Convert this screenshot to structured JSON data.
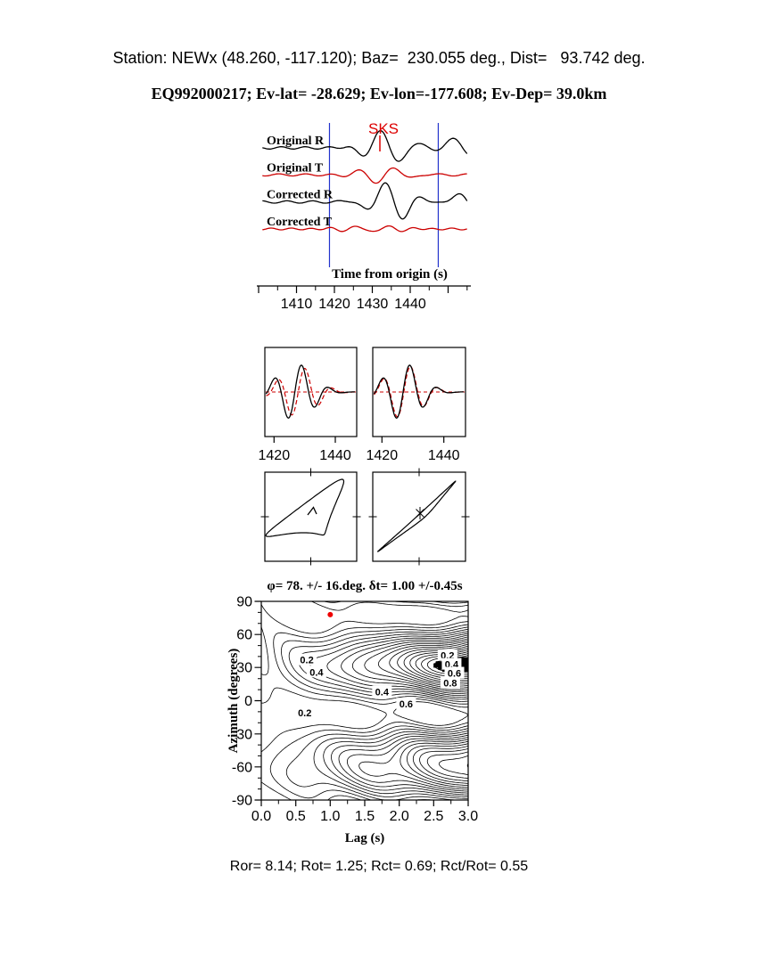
{
  "page": {
    "title_line1": "Station: NEWx (48.260, -117.120); Baz=  230.055 deg., Dist=   93.742 deg.",
    "title_line2": "EQ992000217; Ev-lat= -28.629; Ev-lon=-177.608; Ev-Dep= 39.0km",
    "footer": "Ror= 8.14; Rot= 1.25; Rct= 0.69; Rct/Rot= 0.55"
  },
  "colors": {
    "trace_black": "#000000",
    "trace_red": "#cc0000",
    "window_blue": "#2233cc",
    "marker_red": "#ee0000"
  },
  "chart_data": [
    {
      "id": "seismograms",
      "type": "line",
      "phase_label": "SKS",
      "phase_time": 1432,
      "xlabel": "Time from origin (s)",
      "xlim": [
        1400,
        1456
      ],
      "xticks": [
        "1410",
        "1420",
        "1430",
        "1440"
      ],
      "xtick_values": [
        1410,
        1420,
        1430,
        1440
      ],
      "window_lines": [
        1418.7,
        1447.4
      ],
      "traces": [
        {
          "label": "Original R",
          "color": "#000000",
          "wavelets": [
            {
              "center": 1434,
              "sigma": 7,
              "amp": 20,
              "period": 10.5,
              "phase": 1429.5
            },
            {
              "center": 1454,
              "sigma": 5,
              "amp": 14,
              "period": 12,
              "phase": 1448
            }
          ],
          "noise": {
            "amp": 1.3,
            "period": 6.3,
            "phase": 0.5
          }
        },
        {
          "label": "Original T",
          "color": "#cc0000",
          "wavelets": [
            {
              "center": 1433,
              "sigma": 8,
              "amp": 9,
              "period": 10,
              "phase": 1433.5
            }
          ],
          "noise": {
            "amp": 1.2,
            "period": 7.1,
            "phase": 2.0
          }
        },
        {
          "label": "Corrected R",
          "color": "#000000",
          "wavelets": [
            {
              "center": 1435,
              "sigma": 7,
              "amp": 22,
              "period": 10.5,
              "phase": 1430.5
            },
            {
              "center": 1455,
              "sigma": 5,
              "amp": 12,
              "period": 12,
              "phase": 1449
            }
          ],
          "noise": {
            "amp": 1.3,
            "period": 6.7,
            "phase": 1.1
          }
        },
        {
          "label": "Corrected T",
          "color": "#cc0000",
          "wavelets": [
            {
              "center": 1430,
              "sigma": 10,
              "amp": 3.5,
              "period": 8,
              "phase": 1424
            }
          ],
          "noise": {
            "amp": 1.0,
            "period": 5.3,
            "phase": 3.0
          }
        }
      ]
    },
    {
      "id": "waveform-compare",
      "type": "line",
      "xlim": [
        1417,
        1447
      ],
      "xticks": [
        "1420",
        "1440"
      ],
      "xtick_values": [
        1420,
        1440
      ],
      "panels": [
        {
          "name": "fast-slow-uncorrected",
          "black": {
            "amp": 32,
            "center": 1427,
            "sigma": 8,
            "period": 9,
            "phase": 1422.3
          },
          "red": {
            "shift": 1.1,
            "scale": 0.88
          }
        },
        {
          "name": "fast-slow-corrected",
          "black": {
            "amp": 32,
            "center": 1427,
            "sigma": 8,
            "period": 9,
            "phase": 1422.3
          },
          "red": {
            "shift": 0.25,
            "scale": 0.95
          }
        }
      ]
    },
    {
      "id": "particle-motion",
      "type": "line",
      "panels": [
        {
          "name": "uncorrected",
          "fx": [
            38,
            14
          ],
          "fy": [
            30,
            12
          ],
          "phx": [
            0,
            0.8
          ],
          "phy": [
            0.9,
            0.3
          ]
        },
        {
          "name": "corrected",
          "fx": [
            40,
            10
          ],
          "fy": [
            36,
            9
          ],
          "phx": [
            0,
            0.4
          ],
          "phy": [
            0.12,
            0.2
          ]
        }
      ]
    },
    {
      "id": "error-surface",
      "type": "heatmap",
      "title": "φ= 78. +/- 16.deg. δt= 1.00 +/-0.45s",
      "xlabel": "Lag (s)",
      "ylabel": "Azimuth (degrees)",
      "xlim": [
        0,
        3
      ],
      "ylim": [
        -90,
        90
      ],
      "xticks": [
        "0.0",
        "0.5",
        "1.0",
        "1.5",
        "2.0",
        "2.5",
        "3.0"
      ],
      "yticks": [
        "90",
        "60",
        "30",
        "0",
        "-30",
        "-60",
        "-90"
      ],
      "best_fit": {
        "phi_deg": 78,
        "phi_err_deg": 16,
        "dt_s": 1.0,
        "dt_err_s": 0.45
      },
      "marker": {
        "lag": 1.0,
        "azimuth": 78
      },
      "levels_step": 0.05,
      "levels_max": 0.95,
      "black_threshold": 0.93,
      "field": {
        "phi0": 78,
        "base": 0.08,
        "grow": 0.92,
        "pow": 1.1,
        "suppress_az": -57,
        "suppress_amp": 0.18,
        "suppress_sigma": 25,
        "bump": {
          "amp": 0.16,
          "az": 33,
          "saz": 9,
          "lag": 2.9,
          "slag": 0.45
        },
        "wiggles": [
          {
            "amp": 0.035,
            "kx": 4.5,
            "ky": 0.09,
            "ph": 1.0
          },
          {
            "amp": 0.025,
            "kx": 6.3,
            "ky": 0.065,
            "ph": 2.6
          }
        ]
      },
      "contour_labels": [
        {
          "text": "0.2",
          "lag": 0.66,
          "az": 37
        },
        {
          "text": "0.4",
          "lag": 0.8,
          "az": 26
        },
        {
          "text": "0.2",
          "lag": 0.63,
          "az": -11
        },
        {
          "text": "0.4",
          "lag": 1.75,
          "az": 8
        },
        {
          "text": "0.6",
          "lag": 2.1,
          "az": -3
        },
        {
          "text": "0.2",
          "lag": 2.7,
          "az": 41
        },
        {
          "text": "0.4",
          "lag": 2.76,
          "az": 33
        },
        {
          "text": "0.6",
          "lag": 2.8,
          "az": 25
        },
        {
          "text": "0.8",
          "lag": 2.74,
          "az": 16
        }
      ]
    }
  ]
}
